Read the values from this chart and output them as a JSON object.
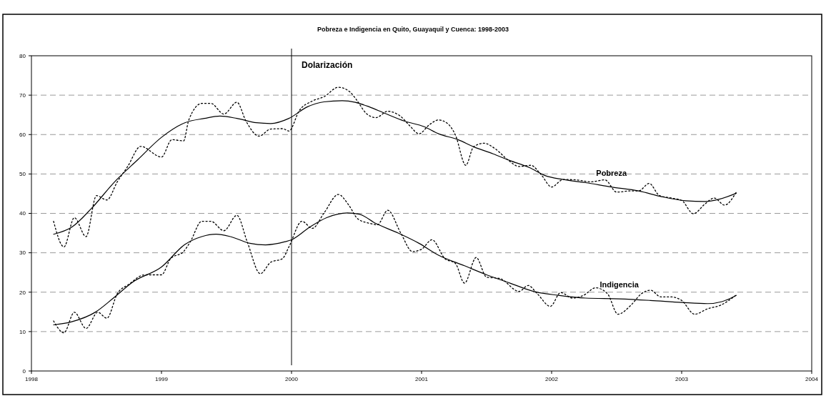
{
  "chart_data": {
    "type": "line",
    "title": "Pobreza e Indigencia en Quito, Guayaquil y Cuenca: 1998-2003",
    "xlim": [
      1998,
      2004
    ],
    "xticks": [
      1998,
      1999,
      2000,
      2001,
      2002,
      2003,
      2004
    ],
    "ylim": [
      0,
      80
    ],
    "yticks": [
      0,
      10,
      20,
      30,
      40,
      50,
      60,
      70,
      80
    ],
    "grid": "y",
    "ref_lines": [
      {
        "axis": "x",
        "value": 2000,
        "label": "Dolarización",
        "color": "#000000"
      }
    ],
    "series": [
      {
        "color": "#000000",
        "line_style": "dotted",
        "x": [
          1998.17,
          1998.25,
          1998.33,
          1998.42,
          1998.5,
          1998.58,
          1998.66,
          1998.74,
          1998.84,
          1999.0,
          1999.08,
          1999.17,
          1999.21,
          1999.31,
          1999.38,
          1999.48,
          1999.58,
          1999.65,
          1999.75,
          1999.84,
          1999.93,
          1999.98,
          2000.06,
          2000.16,
          2000.25,
          2000.36,
          2000.45,
          2000.5,
          2000.58,
          2000.65,
          2000.74,
          2000.84,
          2000.91,
          2000.98,
          2001.06,
          2001.13,
          2001.2,
          2001.26,
          2001.34,
          2001.4,
          2001.48,
          2001.57,
          2001.67,
          2001.75,
          2001.84,
          2001.92,
          2002.0,
          2002.09,
          2002.19,
          2002.3,
          2002.41,
          2002.5,
          2002.61,
          2002.67,
          2002.75,
          2002.83,
          2002.92,
          2003.0,
          2003.09,
          2003.18,
          2003.25,
          2003.33,
          2003.42
        ],
        "values": [
          38.0,
          31.5,
          38.9,
          34.1,
          44.5,
          43.4,
          48.0,
          51.9,
          57.0,
          54.3,
          58.7,
          58.4,
          63.7,
          67.9,
          67.9,
          65.2,
          68.2,
          63.4,
          59.6,
          61.4,
          61.5,
          60.9,
          66.1,
          68.5,
          69.6,
          72.0,
          70.8,
          68.8,
          65.2,
          64.3,
          65.9,
          64.6,
          62.2,
          60.2,
          62.5,
          63.7,
          62.8,
          59.9,
          52.2,
          56.9,
          57.8,
          56.3,
          53.4,
          51.9,
          52.2,
          49.8,
          46.7,
          48.6,
          48.5,
          48.0,
          48.5,
          45.4,
          45.7,
          45.7,
          47.6,
          44.5,
          43.9,
          43.3,
          39.9,
          42.4,
          43.9,
          42.1,
          45.4
        ]
      },
      {
        "name": "Pobreza",
        "color": "#000000",
        "line_style": "solid",
        "x": [
          1998.17,
          1998.31,
          1998.46,
          1998.64,
          1998.82,
          1999.0,
          1999.18,
          1999.33,
          1999.45,
          1999.58,
          1999.73,
          1999.84,
          1999.98,
          2000.12,
          2000.25,
          2000.39,
          2000.49,
          2000.6,
          2000.71,
          2000.87,
          2001.02,
          2001.13,
          2001.28,
          2001.4,
          2001.55,
          2001.68,
          2001.83,
          2001.95,
          2002.09,
          2002.26,
          2002.46,
          2002.67,
          2002.85,
          2003.03,
          2003.18,
          2003.29,
          2003.42
        ],
        "values": [
          34.7,
          36.5,
          41.2,
          48.0,
          53.7,
          59.3,
          63.0,
          64.1,
          64.7,
          64.1,
          63.0,
          62.8,
          64.1,
          67.0,
          68.3,
          68.6,
          68.2,
          67.0,
          65.5,
          63.4,
          62.0,
          60.2,
          58.7,
          56.9,
          55.1,
          53.4,
          51.6,
          49.6,
          48.6,
          47.8,
          46.7,
          45.7,
          44.2,
          43.2,
          43.0,
          43.6,
          45.1
        ]
      },
      {
        "color": "#000000",
        "line_style": "dotted",
        "x": [
          1998.17,
          1998.25,
          1998.33,
          1998.42,
          1998.51,
          1998.58,
          1998.66,
          1998.75,
          1998.87,
          1999.0,
          1999.07,
          1999.17,
          1999.22,
          1999.31,
          1999.38,
          1999.48,
          1999.58,
          1999.66,
          1999.76,
          1999.84,
          1999.93,
          1999.98,
          2000.08,
          2000.16,
          2000.25,
          2000.36,
          2000.44,
          2000.51,
          2000.61,
          2000.66,
          2000.74,
          2000.84,
          2000.93,
          2001.0,
          2001.08,
          2001.18,
          2001.26,
          2001.33,
          2001.42,
          2001.5,
          2001.6,
          2001.75,
          2001.82,
          2001.89,
          2001.99,
          2002.07,
          2002.16,
          2002.24,
          2002.34,
          2002.43,
          2002.51,
          2002.61,
          2002.69,
          2002.76,
          2002.84,
          2002.92,
          2003.0,
          2003.1,
          2003.2,
          2003.3,
          2003.42
        ],
        "values": [
          12.7,
          9.7,
          14.9,
          10.8,
          14.9,
          13.4,
          19.6,
          22.0,
          24.4,
          24.4,
          28.5,
          30.3,
          32.7,
          38.0,
          38.0,
          35.6,
          39.5,
          32.7,
          24.7,
          27.6,
          28.5,
          31.5,
          38.0,
          36.2,
          40.1,
          44.8,
          42.1,
          38.6,
          37.4,
          37.1,
          40.8,
          35.0,
          30.3,
          30.9,
          33.3,
          28.5,
          27.3,
          22.3,
          28.8,
          23.8,
          23.5,
          20.2,
          21.7,
          19.6,
          16.4,
          19.9,
          18.5,
          19.1,
          21.1,
          19.6,
          14.4,
          16.7,
          19.6,
          20.5,
          18.8,
          18.8,
          17.9,
          14.4,
          15.8,
          16.7,
          19.3
        ]
      },
      {
        "name": "Indigencia",
        "color": "#000000",
        "line_style": "solid",
        "x": [
          1998.17,
          1998.31,
          1998.49,
          1998.63,
          1998.78,
          1999.0,
          1999.18,
          1999.31,
          1999.42,
          1999.53,
          1999.68,
          1999.8,
          1999.95,
          2000.0,
          2000.14,
          2000.27,
          2000.43,
          2000.52,
          2000.65,
          2000.82,
          2000.98,
          2001.13,
          2001.33,
          2001.5,
          2001.68,
          2001.86,
          2002.05,
          2002.26,
          2002.52,
          2002.76,
          2003.0,
          2003.2,
          2003.31,
          2003.42
        ],
        "values": [
          11.7,
          12.5,
          14.9,
          18.5,
          22.6,
          26.4,
          32.1,
          34.1,
          34.7,
          34.1,
          32.4,
          32.0,
          32.8,
          33.3,
          36.5,
          38.9,
          40.1,
          39.8,
          37.4,
          35.0,
          32.4,
          29.4,
          26.7,
          24.4,
          22.3,
          20.2,
          19.2,
          18.5,
          18.3,
          17.9,
          17.4,
          17.1,
          17.6,
          19.2
        ]
      }
    ]
  }
}
